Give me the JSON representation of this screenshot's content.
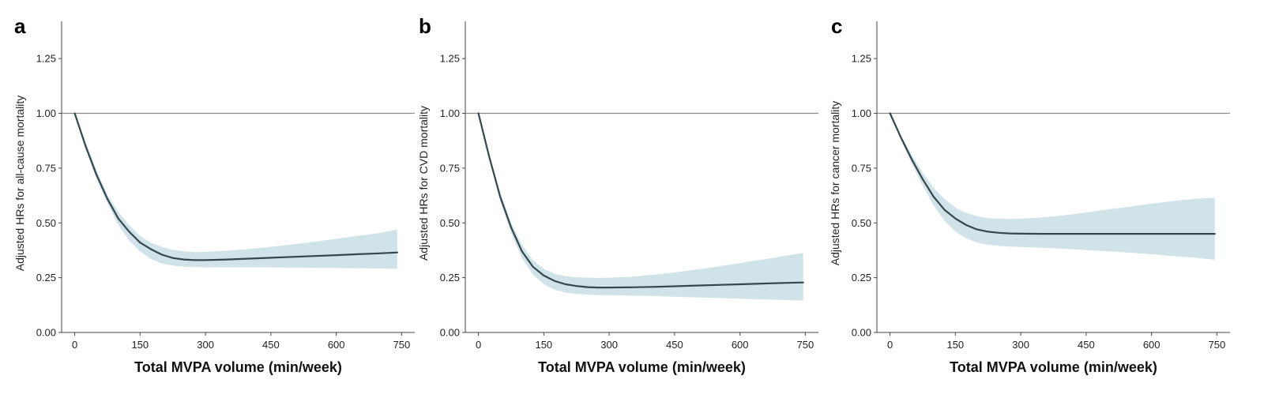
{
  "colors": {
    "band": "#cfe3e9",
    "line": "#34474c",
    "reference": "#8a8a8a",
    "axis": "#444444"
  },
  "chart_data": [
    {
      "panel": "a",
      "type": "line",
      "xlabel": "Total MVPA volume (min/week)",
      "ylabel": "Adjusted HRs for all-cause mortality",
      "xlim": [
        -30,
        780
      ],
      "ylim": [
        0,
        1.42
      ],
      "xticks": [
        0,
        150,
        300,
        450,
        600,
        750
      ],
      "yticks": [
        "0.00",
        "0.25",
        "0.50",
        "0.75",
        "1.00",
        "1.25"
      ],
      "reference_line": 1.0,
      "x": [
        0,
        25,
        50,
        75,
        100,
        125,
        150,
        175,
        200,
        225,
        250,
        275,
        300,
        350,
        400,
        450,
        500,
        550,
        600,
        650,
        700,
        740
      ],
      "y": [
        1.0,
        0.85,
        0.72,
        0.61,
        0.52,
        0.46,
        0.41,
        0.38,
        0.355,
        0.34,
        0.333,
        0.33,
        0.33,
        0.333,
        0.337,
        0.341,
        0.345,
        0.349,
        0.353,
        0.357,
        0.361,
        0.365
      ],
      "lower": [
        1.0,
        0.84,
        0.7,
        0.59,
        0.49,
        0.42,
        0.37,
        0.335,
        0.315,
        0.305,
        0.3,
        0.298,
        0.297,
        0.297,
        0.297,
        0.297,
        0.296,
        0.295,
        0.294,
        0.293,
        0.292,
        0.29
      ],
      "upper": [
        1.0,
        0.87,
        0.74,
        0.63,
        0.55,
        0.49,
        0.44,
        0.41,
        0.39,
        0.377,
        0.37,
        0.367,
        0.368,
        0.373,
        0.381,
        0.391,
        0.402,
        0.414,
        0.427,
        0.441,
        0.454,
        0.47
      ]
    },
    {
      "panel": "b",
      "type": "line",
      "xlabel": "Total MVPA volume (min/week)",
      "ylabel": "Adjusted HRs for CVD mortality",
      "xlim": [
        -30,
        780
      ],
      "ylim": [
        0,
        1.42
      ],
      "xticks": [
        0,
        150,
        300,
        450,
        600,
        750
      ],
      "yticks": [
        "0.00",
        "0.25",
        "0.50",
        "0.75",
        "1.00",
        "1.25"
      ],
      "reference_line": 1.0,
      "x": [
        0,
        25,
        50,
        75,
        100,
        125,
        150,
        175,
        200,
        225,
        250,
        275,
        300,
        350,
        400,
        450,
        500,
        550,
        600,
        650,
        700,
        745
      ],
      "y": [
        1.0,
        0.8,
        0.62,
        0.48,
        0.37,
        0.3,
        0.26,
        0.235,
        0.22,
        0.212,
        0.207,
        0.205,
        0.205,
        0.206,
        0.208,
        0.211,
        0.214,
        0.217,
        0.22,
        0.223,
        0.226,
        0.228
      ],
      "lower": [
        1.0,
        0.79,
        0.6,
        0.455,
        0.34,
        0.265,
        0.22,
        0.195,
        0.182,
        0.176,
        0.173,
        0.171,
        0.17,
        0.168,
        0.166,
        0.163,
        0.16,
        0.157,
        0.154,
        0.151,
        0.148,
        0.145
      ],
      "upper": [
        1.0,
        0.81,
        0.64,
        0.5,
        0.4,
        0.33,
        0.29,
        0.268,
        0.257,
        0.252,
        0.25,
        0.249,
        0.25,
        0.254,
        0.263,
        0.274,
        0.287,
        0.301,
        0.316,
        0.332,
        0.348,
        0.363
      ]
    },
    {
      "panel": "c",
      "type": "line",
      "xlabel": "Total MVPA volume (min/week)",
      "ylabel": "Adjusted HRs for cancer mortality",
      "xlim": [
        -30,
        780
      ],
      "ylim": [
        0,
        1.42
      ],
      "xticks": [
        0,
        150,
        300,
        450,
        600,
        750
      ],
      "yticks": [
        "0.00",
        "0.25",
        "0.50",
        "0.75",
        "1.00",
        "1.25"
      ],
      "reference_line": 1.0,
      "x": [
        0,
        25,
        50,
        75,
        100,
        125,
        150,
        175,
        200,
        225,
        250,
        275,
        300,
        350,
        400,
        450,
        500,
        550,
        600,
        650,
        700,
        745
      ],
      "y": [
        1.0,
        0.89,
        0.79,
        0.7,
        0.62,
        0.56,
        0.52,
        0.49,
        0.47,
        0.46,
        0.455,
        0.452,
        0.451,
        0.45,
        0.45,
        0.45,
        0.45,
        0.45,
        0.45,
        0.45,
        0.45,
        0.45
      ],
      "lower": [
        1.0,
        0.88,
        0.77,
        0.67,
        0.58,
        0.51,
        0.46,
        0.43,
        0.41,
        0.4,
        0.395,
        0.392,
        0.39,
        0.386,
        0.382,
        0.376,
        0.37,
        0.364,
        0.357,
        0.349,
        0.341,
        0.332
      ],
      "upper": [
        1.0,
        0.9,
        0.81,
        0.73,
        0.66,
        0.61,
        0.57,
        0.545,
        0.53,
        0.522,
        0.519,
        0.518,
        0.519,
        0.525,
        0.535,
        0.547,
        0.561,
        0.574,
        0.588,
        0.6,
        0.61,
        0.615
      ]
    }
  ]
}
